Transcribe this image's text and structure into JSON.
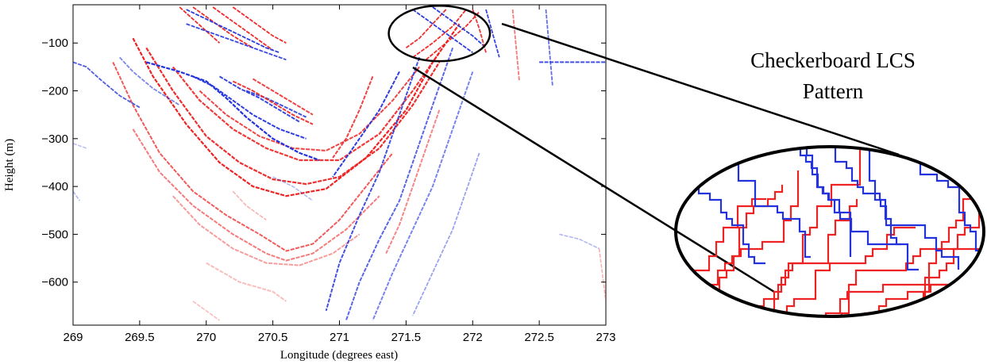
{
  "chart_data": {
    "type": "line",
    "xlabel": "Longitude (degrees east)",
    "ylabel": "Height (m)",
    "xlim": [
      269,
      273
    ],
    "ylim": [
      -690,
      -20
    ],
    "xticks": [
      "269",
      "269.5",
      "270",
      "270.5",
      "271",
      "271.5",
      "272",
      "272.5",
      "273"
    ],
    "xtick_values": [
      269,
      269.5,
      270,
      270.5,
      271,
      271.5,
      272,
      272.5,
      273
    ],
    "yticks": [
      "−100",
      "−200",
      "−300",
      "−400",
      "−500",
      "−600"
    ],
    "ytick_values": [
      -100,
      -200,
      -300,
      -400,
      -500,
      -600
    ],
    "grid": false,
    "annotation": {
      "text_lines": [
        "Checkerboard LCS",
        "Pattern"
      ],
      "highlight_center": [
        271.75,
        -80
      ],
      "highlight_radii": [
        0.38,
        58
      ]
    },
    "colors": {
      "red": "#ee2222",
      "blue": "#2233dd",
      "faint_red": "#f4a0a0",
      "faint_blue": "#9aa0ee"
    },
    "series": [
      {
        "color": "red",
        "alpha": 1.0,
        "width": 2.2,
        "x": [
          269.45,
          269.6,
          269.85,
          270.1,
          270.35,
          270.6,
          270.9,
          271.2,
          271.5,
          271.7,
          271.9
        ],
        "y": [
          -90,
          -170,
          -270,
          -350,
          -400,
          -420,
          -405,
          -340,
          -240,
          -140,
          -60
        ]
      },
      {
        "color": "red",
        "alpha": 0.95,
        "width": 2.2,
        "x": [
          269.55,
          269.75,
          270.0,
          270.25,
          270.5,
          270.75,
          271.0,
          271.3,
          271.55,
          271.75
        ],
        "y": [
          -110,
          -200,
          -295,
          -350,
          -385,
          -395,
          -380,
          -320,
          -230,
          -140
        ]
      },
      {
        "color": "red",
        "alpha": 0.9,
        "width": 2.2,
        "x": [
          269.75,
          269.95,
          270.2,
          270.45,
          270.7,
          271.0,
          271.3,
          271.55,
          271.75
        ],
        "y": [
          -150,
          -220,
          -280,
          -320,
          -345,
          -345,
          -290,
          -200,
          -120
        ]
      },
      {
        "color": "red",
        "alpha": 0.85,
        "width": 2.0,
        "x": [
          269.95,
          270.15,
          270.4,
          270.65,
          270.9,
          271.15,
          271.4,
          271.6
        ],
        "y": [
          -200,
          -250,
          -295,
          -320,
          -325,
          -290,
          -220,
          -150
        ]
      },
      {
        "color": "red",
        "alpha": 0.75,
        "width": 2.0,
        "x": [
          269.3,
          269.45,
          269.65,
          269.9,
          270.15,
          270.4,
          270.6,
          270.8,
          271.0,
          271.2,
          271.4
        ],
        "y": [
          -140,
          -230,
          -330,
          -410,
          -460,
          -500,
          -535,
          -520,
          -470,
          -400,
          -330
        ]
      },
      {
        "color": "red",
        "alpha": 0.6,
        "width": 2.0,
        "x": [
          269.45,
          269.65,
          269.9,
          270.2,
          270.45,
          270.6,
          270.8,
          271.05,
          271.3
        ],
        "y": [
          -280,
          -370,
          -440,
          -500,
          -540,
          -555,
          -540,
          -490,
          -420
        ]
      },
      {
        "color": "red",
        "alpha": 0.45,
        "width": 2.0,
        "x": [
          269.75,
          269.95,
          270.2,
          270.45,
          270.7,
          270.95,
          271.15
        ],
        "y": [
          -420,
          -480,
          -530,
          -560,
          -565,
          -540,
          -500
        ]
      },
      {
        "color": "red",
        "alpha": 0.3,
        "width": 2.0,
        "x": [
          270.0,
          270.25,
          270.5,
          270.6
        ],
        "y": [
          -560,
          -600,
          -620,
          -640
        ]
      },
      {
        "color": "red",
        "alpha": 0.95,
        "width": 1.8,
        "x": [
          269.8,
          269.9,
          270.0,
          270.1
        ],
        "y": [
          -25,
          -50,
          -75,
          -100
        ]
      },
      {
        "color": "red",
        "alpha": 0.95,
        "width": 1.8,
        "x": [
          269.9,
          270.05,
          270.2,
          270.35
        ],
        "y": [
          -25,
          -55,
          -85,
          -110
        ]
      },
      {
        "color": "red",
        "alpha": 0.95,
        "width": 1.8,
        "x": [
          270.05,
          270.2,
          270.35,
          270.5
        ],
        "y": [
          -25,
          -55,
          -85,
          -115
        ]
      },
      {
        "color": "red",
        "alpha": 0.95,
        "width": 1.8,
        "x": [
          270.2,
          270.35,
          270.5,
          270.6
        ],
        "y": [
          -25,
          -55,
          -85,
          -100
        ]
      },
      {
        "color": "blue",
        "alpha": 0.95,
        "width": 1.8,
        "x": [
          269.85,
          270.0,
          270.15,
          270.3,
          270.45,
          270.55
        ],
        "y": [
          -30,
          -50,
          -70,
          -90,
          -110,
          -120
        ]
      },
      {
        "color": "blue",
        "alpha": 0.9,
        "width": 1.8,
        "x": [
          269.85,
          270.05,
          270.25,
          270.45,
          270.6
        ],
        "y": [
          -60,
          -80,
          -100,
          -120,
          -135
        ]
      },
      {
        "color": "blue",
        "alpha": 1.0,
        "width": 2.2,
        "x": [
          269.55,
          269.8,
          270.0,
          270.15,
          270.3,
          270.5,
          270.7,
          270.85
        ],
        "y": [
          -140,
          -160,
          -180,
          -215,
          -255,
          -300,
          -330,
          -345
        ]
      },
      {
        "color": "blue",
        "alpha": 0.95,
        "width": 2.0,
        "x": [
          269.9,
          270.05,
          270.2,
          270.35,
          270.55,
          270.75
        ],
        "y": [
          -170,
          -190,
          -220,
          -250,
          -280,
          -300
        ]
      },
      {
        "color": "blue",
        "alpha": 0.9,
        "width": 2.0,
        "x": [
          270.1,
          270.25,
          270.4,
          270.55,
          270.7
        ],
        "y": [
          -170,
          -195,
          -215,
          -240,
          -265
        ]
      },
      {
        "color": "blue",
        "alpha": 0.85,
        "width": 2.0,
        "x": [
          270.3,
          270.45,
          270.6,
          270.75
        ],
        "y": [
          -200,
          -215,
          -235,
          -255
        ]
      },
      {
        "color": "red",
        "alpha": 0.9,
        "width": 2.0,
        "x": [
          270.2,
          270.35,
          270.5,
          270.65,
          270.8
        ],
        "y": [
          -180,
          -200,
          -225,
          -250,
          -270
        ]
      },
      {
        "color": "red",
        "alpha": 0.85,
        "width": 2.0,
        "x": [
          270.35,
          270.5,
          270.65,
          270.8
        ],
        "y": [
          -175,
          -200,
          -225,
          -250
        ]
      },
      {
        "color": "blue",
        "alpha": 0.85,
        "width": 2.0,
        "x": [
          271.6,
          271.5,
          271.4,
          271.3,
          271.15,
          271.0,
          270.9
        ],
        "y": [
          -130,
          -210,
          -290,
          -370,
          -460,
          -560,
          -660
        ]
      },
      {
        "color": "blue",
        "alpha": 0.75,
        "width": 2.0,
        "x": [
          271.85,
          271.75,
          271.65,
          271.55,
          271.45,
          271.3,
          271.15,
          271.05
        ],
        "y": [
          -110,
          -190,
          -270,
          -350,
          -430,
          -510,
          -600,
          -680
        ]
      },
      {
        "color": "blue",
        "alpha": 0.6,
        "width": 2.0,
        "x": [
          272.0,
          271.9,
          271.8,
          271.7,
          271.55,
          271.4,
          271.25
        ],
        "y": [
          -160,
          -240,
          -320,
          -400,
          -490,
          -580,
          -680
        ]
      },
      {
        "color": "blue",
        "alpha": 0.45,
        "width": 1.8,
        "x": [
          272.05,
          271.95,
          271.85,
          271.7,
          271.55
        ],
        "y": [
          -330,
          -410,
          -490,
          -580,
          -670
        ]
      },
      {
        "color": "blue",
        "alpha": 0.95,
        "width": 2.0,
        "x": [
          271.45,
          271.3,
          271.1,
          270.95
        ],
        "y": [
          -160,
          -240,
          -320,
          -380
        ]
      },
      {
        "color": "red",
        "alpha": 0.85,
        "width": 2.0,
        "x": [
          271.25,
          271.15,
          271.05,
          270.95
        ],
        "y": [
          -170,
          -240,
          -300,
          -340
        ]
      },
      {
        "color": "red",
        "alpha": 0.55,
        "width": 2.0,
        "x": [
          271.75,
          271.65,
          271.55,
          271.45,
          271.35
        ],
        "y": [
          -240,
          -320,
          -400,
          -480,
          -540
        ]
      },
      {
        "color": "red",
        "alpha": 0.95,
        "width": 1.8,
        "x": [
          271.5,
          271.6,
          271.7,
          271.8
        ],
        "y": [
          -110,
          -90,
          -60,
          -30
        ]
      },
      {
        "color": "red",
        "alpha": 0.95,
        "width": 1.8,
        "x": [
          271.55,
          271.7,
          271.85,
          271.95
        ],
        "y": [
          -130,
          -100,
          -65,
          -30
        ]
      },
      {
        "color": "red",
        "alpha": 0.95,
        "width": 1.8,
        "x": [
          271.65,
          271.8,
          271.95,
          272.05
        ],
        "y": [
          -135,
          -100,
          -65,
          -35
        ]
      },
      {
        "color": "blue",
        "alpha": 0.95,
        "width": 1.8,
        "x": [
          271.55,
          271.7,
          271.85,
          272.0
        ],
        "y": [
          -30,
          -60,
          -90,
          -120
        ]
      },
      {
        "color": "blue",
        "alpha": 0.95,
        "width": 1.8,
        "x": [
          271.7,
          271.85,
          272.0,
          272.1
        ],
        "y": [
          -25,
          -55,
          -85,
          -110
        ]
      },
      {
        "color": "blue",
        "alpha": 0.9,
        "width": 1.8,
        "x": [
          272.1,
          272.15,
          272.2
        ],
        "y": [
          -30,
          -80,
          -130
        ]
      },
      {
        "color": "red",
        "alpha": 0.9,
        "width": 1.8,
        "x": [
          272.0,
          272.05,
          272.1
        ],
        "y": [
          -30,
          -70,
          -120
        ]
      },
      {
        "color": "blue",
        "alpha": 0.85,
        "width": 2.0,
        "x": [
          272.5,
          272.6,
          272.75,
          272.9,
          273.0
        ],
        "y": [
          -140,
          -140,
          -140,
          -140,
          -140
        ]
      },
      {
        "color": "blue",
        "alpha": 0.7,
        "width": 1.8,
        "x": [
          272.55,
          272.6
        ],
        "y": [
          -30,
          -190
        ]
      },
      {
        "color": "red",
        "alpha": 0.6,
        "width": 1.8,
        "x": [
          272.3,
          272.35
        ],
        "y": [
          -30,
          -180
        ]
      },
      {
        "color": "blue",
        "alpha": 0.8,
        "width": 1.8,
        "x": [
          269.0,
          269.1,
          269.2,
          269.35,
          269.5
        ],
        "y": [
          -140,
          -150,
          -175,
          -210,
          -235
        ]
      },
      {
        "color": "blue",
        "alpha": 0.6,
        "width": 1.8,
        "x": [
          269.35,
          269.45,
          269.6,
          269.8
        ],
        "y": [
          -130,
          -160,
          -195,
          -230
        ]
      },
      {
        "color": "blue",
        "alpha": 0.35,
        "width": 1.6,
        "x": [
          270.5,
          270.65,
          270.8
        ],
        "y": [
          -380,
          -400,
          -430
        ]
      },
      {
        "color": "red",
        "alpha": 0.35,
        "width": 1.6,
        "x": [
          270.2,
          270.3,
          270.45
        ],
        "y": [
          -410,
          -440,
          -470
        ]
      },
      {
        "color": "blue",
        "alpha": 0.35,
        "width": 1.6,
        "x": [
          272.65,
          272.8,
          272.95
        ],
        "y": [
          -500,
          -510,
          -530
        ]
      },
      {
        "color": "red",
        "alpha": 0.35,
        "width": 1.6,
        "x": [
          272.95,
          273.0
        ],
        "y": [
          -530,
          -640
        ]
      },
      {
        "color": "red",
        "alpha": 0.3,
        "width": 1.6,
        "x": [
          269.9,
          270.1
        ],
        "y": [
          -640,
          -680
        ]
      },
      {
        "color": "blue",
        "alpha": 0.35,
        "width": 1.6,
        "x": [
          269.0,
          269.05
        ],
        "y": [
          -410,
          -430
        ]
      },
      {
        "color": "blue",
        "alpha": 0.3,
        "width": 1.6,
        "x": [
          269.0,
          269.1
        ],
        "y": [
          -310,
          -320
        ]
      }
    ]
  }
}
